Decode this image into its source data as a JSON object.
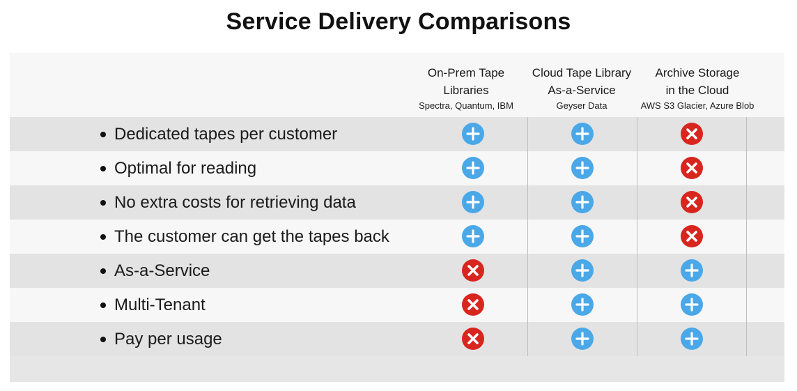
{
  "title": "Service Delivery Comparisons",
  "columns": [
    {
      "line1": "On-Prem Tape",
      "line2": "Libraries",
      "sub": "Spectra, Quantum, IBM"
    },
    {
      "line1": "Cloud Tape Library",
      "line2": "As-a-Service",
      "sub": "Geyser Data"
    },
    {
      "line1": "Archive Storage",
      "line2": "in the Cloud",
      "sub": "AWS S3 Glacier, Azure Blob"
    }
  ],
  "rows": [
    {
      "label": "Dedicated tapes per customer",
      "values": [
        "yes",
        "yes",
        "no"
      ]
    },
    {
      "label": "Optimal for reading",
      "values": [
        "yes",
        "yes",
        "no"
      ]
    },
    {
      "label": "No extra costs for retrieving data",
      "values": [
        "yes",
        "yes",
        "no"
      ]
    },
    {
      "label": "The customer can get the tapes back",
      "values": [
        "yes",
        "yes",
        "no"
      ]
    },
    {
      "label": "As-a-Service",
      "values": [
        "no",
        "yes",
        "yes"
      ]
    },
    {
      "label": "Multi-Tenant",
      "values": [
        "no",
        "yes",
        "yes"
      ]
    },
    {
      "label": "Pay per usage",
      "values": [
        "no",
        "yes",
        "yes"
      ]
    }
  ],
  "icons": {
    "yes": "plus-circle-icon",
    "no": "x-circle-icon"
  },
  "colors": {
    "yes": "#4aa8e8",
    "no": "#d8261f"
  }
}
